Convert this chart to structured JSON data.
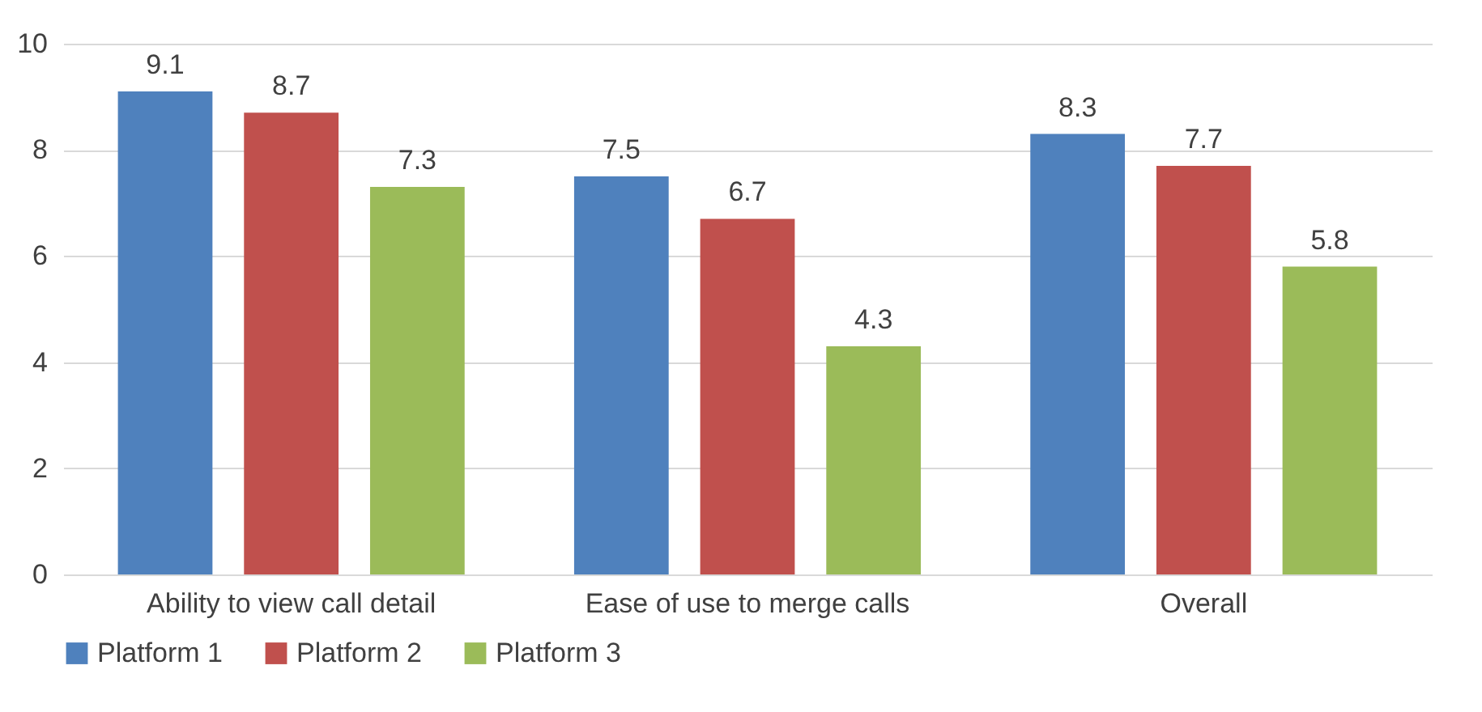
{
  "chart_data": {
    "type": "bar",
    "categories": [
      "Ability to view call detail",
      "Ease of use to merge calls",
      "Overall"
    ],
    "series": [
      {
        "name": "Platform 1",
        "color": "#4f81bd",
        "values": [
          9.1,
          7.5,
          8.3
        ]
      },
      {
        "name": "Platform 2",
        "color": "#c0504d",
        "values": [
          8.7,
          6.7,
          7.7
        ]
      },
      {
        "name": "Platform 3",
        "color": "#9bbb59",
        "values": [
          7.3,
          4.3,
          5.8
        ]
      }
    ],
    "ylim": [
      0,
      10
    ],
    "yticks": [
      0,
      2,
      4,
      6,
      8,
      10
    ],
    "grid": "y",
    "legend": "bottom",
    "data_labels": true
  }
}
